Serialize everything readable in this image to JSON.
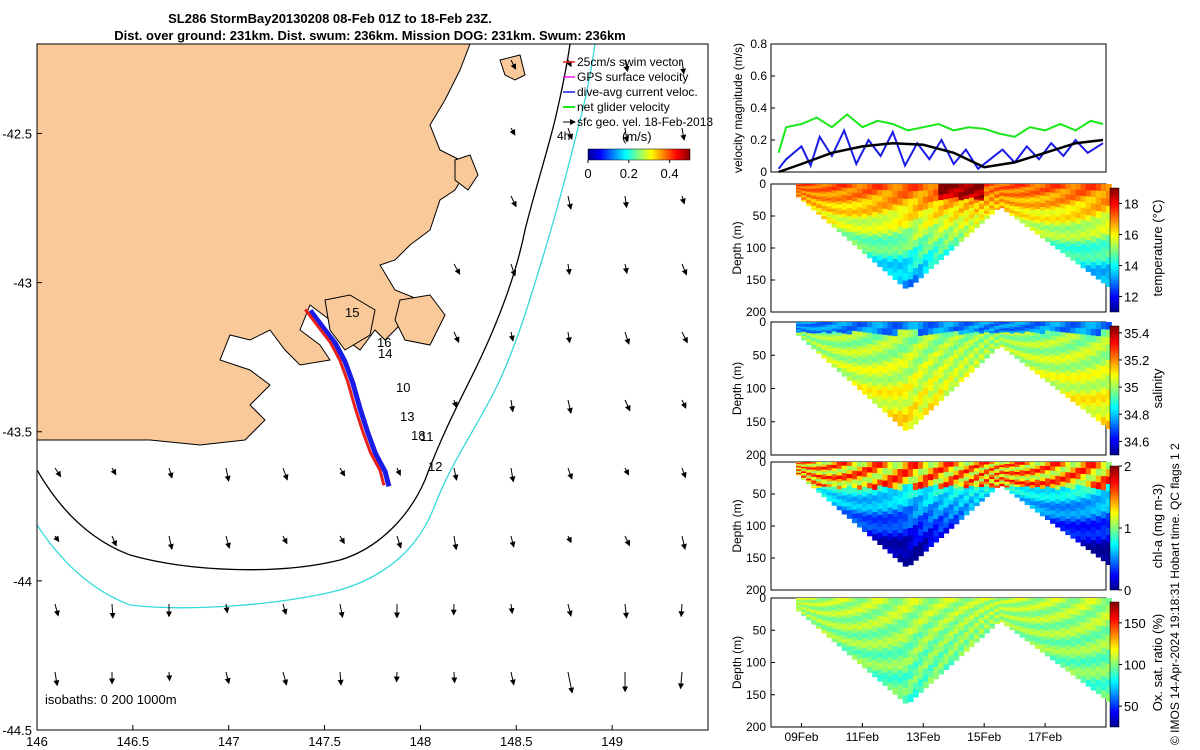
{
  "title_line1": "SL286 StormBay20130208 08-Feb 01Z to 18-Feb 23Z.",
  "title_line2": "Dist. over ground: 231km. Dist. swum: 236km. Mission DOG: 231km. Swum: 236km",
  "side_note": "© IMOS 14-Apr-2024 19:18:31 Hobart time. QC flags 1 2",
  "colors": {
    "land": "#f9c99a",
    "track_red": "#e8211b",
    "track_blue": "#1b1be8",
    "isobath_cyan": "#36d9d9",
    "net_green": "#19e819"
  },
  "chart_data": [
    {
      "type": "map",
      "xlim": [
        146.0,
        149.5
      ],
      "ylim": [
        -44.5,
        -42.2
      ],
      "x_ticks": [
        "146",
        "146.5",
        "147",
        "147.5",
        "148",
        "148.5",
        "149"
      ],
      "y_ticks": [
        "-42.5",
        "-43",
        "-43.5",
        "-44",
        "-44.5"
      ],
      "legend": [
        "25cm/s swim vector",
        "GPS surface velocity",
        "dive-avg current veloc.",
        "net glider velocity",
        "sfc geo. vel. 18-Feb-2013"
      ],
      "colorbar": {
        "label": "(m/s)",
        "ticks": [
          "0",
          "0.2",
          "0.4"
        ],
        "range": [
          0,
          0.5
        ]
      },
      "isobaths_label": "isobaths: 0   200  1000m",
      "label_4h": "4h",
      "day_labels": [
        "15",
        "16",
        "14",
        "10",
        "13",
        "18",
        "11",
        "12"
      ],
      "track": [
        [
          147.41,
          -43.09
        ],
        [
          147.48,
          -43.15
        ],
        [
          147.54,
          -43.2
        ],
        [
          147.59,
          -43.26
        ],
        [
          147.63,
          -43.33
        ],
        [
          147.67,
          -43.42
        ],
        [
          147.71,
          -43.5
        ],
        [
          147.75,
          -43.57
        ],
        [
          147.8,
          -43.63
        ],
        [
          147.82,
          -43.68
        ]
      ]
    },
    {
      "type": "line",
      "ylabel": "velocity magnitude (m/s)",
      "ylim": [
        0,
        0.8
      ],
      "y_ticks": [
        "0",
        "0.2",
        "0.4",
        "0.6",
        "0.8"
      ],
      "x_days": [
        8,
        19
      ],
      "series": [
        {
          "color": "#19e819",
          "values": [
            [
              8.25,
              0.12
            ],
            [
              8.5,
              0.28
            ],
            [
              9,
              0.3
            ],
            [
              9.5,
              0.34
            ],
            [
              10,
              0.28
            ],
            [
              10.5,
              0.36
            ],
            [
              11,
              0.28
            ],
            [
              11.5,
              0.32
            ],
            [
              12,
              0.3
            ],
            [
              12.5,
              0.26
            ],
            [
              13,
              0.28
            ],
            [
              13.5,
              0.3
            ],
            [
              14,
              0.26
            ],
            [
              14.5,
              0.28
            ],
            [
              15,
              0.27
            ],
            [
              15.5,
              0.24
            ],
            [
              16,
              0.22
            ],
            [
              16.5,
              0.28
            ],
            [
              17,
              0.26
            ],
            [
              17.5,
              0.3
            ],
            [
              18,
              0.26
            ],
            [
              18.5,
              0.32
            ],
            [
              18.9,
              0.3
            ]
          ]
        },
        {
          "color": "#1b1be8",
          "values": [
            [
              8.25,
              0.02
            ],
            [
              8.5,
              0.08
            ],
            [
              9,
              0.16
            ],
            [
              9.3,
              0.04
            ],
            [
              9.6,
              0.22
            ],
            [
              10,
              0.1
            ],
            [
              10.4,
              0.26
            ],
            [
              10.8,
              0.05
            ],
            [
              11.2,
              0.2
            ],
            [
              11.6,
              0.1
            ],
            [
              12,
              0.25
            ],
            [
              12.4,
              0.04
            ],
            [
              12.8,
              0.18
            ],
            [
              13.2,
              0.08
            ],
            [
              13.6,
              0.2
            ],
            [
              14,
              0.05
            ],
            [
              14.4,
              0.14
            ],
            [
              14.8,
              0.02
            ],
            [
              15.2,
              0.08
            ],
            [
              15.6,
              0.14
            ],
            [
              16,
              0.06
            ],
            [
              16.4,
              0.16
            ],
            [
              16.8,
              0.08
            ],
            [
              17.2,
              0.18
            ],
            [
              17.6,
              0.1
            ],
            [
              18,
              0.2
            ],
            [
              18.4,
              0.12
            ],
            [
              18.9,
              0.18
            ]
          ]
        },
        {
          "color": "#000000",
          "values": [
            [
              8.25,
              0.0
            ],
            [
              9,
              0.05
            ],
            [
              10,
              0.12
            ],
            [
              11,
              0.16
            ],
            [
              12,
              0.18
            ],
            [
              13,
              0.17
            ],
            [
              14,
              0.12
            ],
            [
              15,
              0.03
            ],
            [
              16,
              0.06
            ],
            [
              17,
              0.12
            ],
            [
              18,
              0.18
            ],
            [
              18.9,
              0.2
            ]
          ]
        }
      ]
    },
    {
      "type": "heatmap",
      "ylabel": "Depth (m)",
      "clabel": "temperature (°C)",
      "clim": [
        11,
        19
      ],
      "c_ticks": [
        "12",
        "14",
        "16",
        "18"
      ],
      "y_ticks": [
        "0",
        "50",
        "100",
        "150",
        "200"
      ]
    },
    {
      "type": "heatmap",
      "ylabel": "Depth (m)",
      "clabel": "salinity",
      "clim": [
        34.5,
        35.45
      ],
      "c_ticks": [
        "34.6",
        "34.8",
        "35",
        "35.2",
        "35.4"
      ],
      "y_ticks": [
        "0",
        "50",
        "100",
        "150",
        "200"
      ]
    },
    {
      "type": "heatmap",
      "ylabel": "Depth (m)",
      "clabel": "chl-a (mg m-3)",
      "clim": [
        0,
        2
      ],
      "c_ticks": [
        "0",
        "1",
        "2"
      ],
      "y_ticks": [
        "0",
        "50",
        "100",
        "150",
        "200"
      ]
    },
    {
      "type": "heatmap",
      "ylabel": "Depth (m)",
      "clabel": "Ox. sat. ratio (%)",
      "clim": [
        25,
        175
      ],
      "c_ticks": [
        "50",
        "100",
        "150"
      ],
      "y_ticks": [
        "0",
        "50",
        "100",
        "150",
        "200"
      ],
      "x_ticks": [
        "09Feb",
        "11Feb",
        "13Feb",
        "15Feb",
        "17Feb"
      ]
    }
  ]
}
